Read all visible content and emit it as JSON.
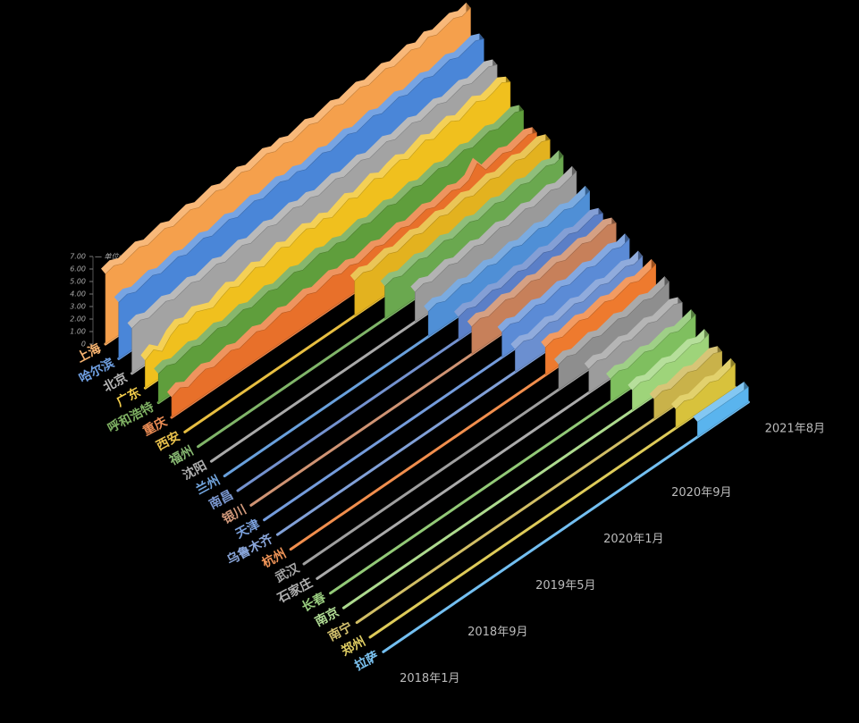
{
  "chart_data": {
    "type": "ribbon3d",
    "y_label": "— 单位: 元/斤",
    "ylim": [
      0,
      7
    ],
    "yticks": [
      0,
      {
        "value": 1,
        "label": "1.00"
      },
      {
        "value": 2,
        "label": "2.00"
      },
      {
        "value": 3,
        "label": "3.00"
      },
      {
        "value": 4,
        "label": "4.00"
      },
      {
        "value": 5,
        "label": "5.00"
      },
      {
        "value": 6,
        "label": "6.00"
      },
      {
        "value": 7,
        "label": "7.00"
      }
    ],
    "categories": [
      "2018年1月",
      null,
      null,
      null,
      null,
      null,
      null,
      null,
      "2018年9月",
      null,
      null,
      null,
      null,
      null,
      null,
      null,
      "2019年5月",
      null,
      null,
      null,
      null,
      null,
      null,
      null,
      "2020年1月",
      null,
      null,
      null,
      null,
      null,
      null,
      null,
      "2020年9月",
      null,
      null,
      null,
      null,
      null,
      null,
      null,
      null,
      null,
      null,
      "2021年8月"
    ],
    "series": [
      {
        "name": "上海",
        "color": "#f5a04c",
        "values": [
          5.6,
          5.8,
          5.5,
          5.7,
          5.9,
          5.6,
          5.8,
          6.0,
          5.7,
          5.9,
          6.1,
          5.8,
          6.0,
          6.2,
          5.9,
          6.1,
          6.3,
          6.0,
          6.2,
          6.4,
          6.1,
          6.3,
          6.0,
          6.2,
          6.4,
          6.1,
          6.3,
          6.5,
          6.2,
          6.4,
          6.6,
          6.3,
          6.5,
          6.7,
          6.4,
          6.6,
          6.8,
          6.5,
          6.9,
          6.6,
          6.8,
          7.0,
          6.7,
          6.9
        ]
      },
      {
        "name": "哈尔滨",
        "color": "#4a86d8",
        "values": [
          4.5,
          4.7,
          4.4,
          4.6,
          4.8,
          4.5,
          4.7,
          4.9,
          4.6,
          4.8,
          5.0,
          4.7,
          4.9,
          5.1,
          4.8,
          5.0,
          5.2,
          4.9,
          5.1,
          5.3,
          5.0,
          5.2,
          4.9,
          5.1,
          5.3,
          5.0,
          5.2,
          5.4,
          5.1,
          5.3,
          5.5,
          5.2,
          5.4,
          5.6,
          5.3,
          5.5,
          5.7,
          5.4,
          5.6,
          5.8,
          5.5,
          5.7,
          5.9,
          5.6
        ]
      },
      {
        "name": "北京",
        "color": "#a3a3a3",
        "values": [
          3.6,
          3.8,
          3.5,
          3.7,
          3.9,
          3.6,
          3.8,
          4.0,
          3.7,
          3.9,
          4.1,
          3.8,
          4.0,
          4.2,
          3.9,
          4.1,
          4.3,
          4.0,
          4.2,
          4.4,
          4.1,
          4.3,
          4.0,
          4.2,
          4.4,
          4.1,
          4.3,
          4.5,
          4.2,
          4.4,
          4.6,
          4.3,
          4.5,
          4.7,
          4.4,
          4.6,
          4.8,
          4.5,
          4.7,
          4.9,
          4.6,
          4.8,
          5.0,
          4.7
        ]
      },
      {
        "name": "广东",
        "color": "#f0c01e",
        "values": [
          2.2,
          2.6,
          2.0,
          2.8,
          3.2,
          2.9,
          3.3,
          3.0,
          2.7,
          3.1,
          3.4,
          3.0,
          3.3,
          3.6,
          3.2,
          3.5,
          3.8,
          3.4,
          3.7,
          3.9,
          3.5,
          3.8,
          3.4,
          3.7,
          4.0,
          3.6,
          3.9,
          4.2,
          3.8,
          4.1,
          4.3,
          3.9,
          4.2,
          4.5,
          4.1,
          4.4,
          4.6,
          4.2,
          4.5,
          4.8,
          4.4,
          4.6,
          4.9,
          4.5
        ]
      },
      {
        "name": "呼和浩特",
        "color": "#5f9e3c",
        "values": [
          2.3,
          2.5,
          2.2,
          2.4,
          2.6,
          2.3,
          2.5,
          2.7,
          2.4,
          2.6,
          2.8,
          2.5,
          2.7,
          2.9,
          2.6,
          2.8,
          3.0,
          2.7,
          2.9,
          3.1,
          2.8,
          3.0,
          2.7,
          2.9,
          3.1,
          2.8,
          3.0,
          3.2,
          2.9,
          3.1,
          3.3,
          3.0,
          3.2,
          3.4,
          3.1,
          3.3,
          3.5,
          3.2,
          3.4,
          3.6,
          3.3,
          3.5,
          3.7,
          3.4
        ]
      },
      {
        "name": "重庆",
        "color": "#e8702a",
        "values": [
          1.6,
          1.9,
          1.5,
          1.8,
          2.0,
          1.7,
          1.9,
          2.1,
          1.8,
          2.0,
          2.2,
          1.9,
          2.1,
          2.3,
          2.0,
          2.2,
          2.4,
          2.1,
          2.3,
          2.5,
          2.2,
          2.4,
          2.1,
          2.3,
          2.5,
          2.2,
          2.4,
          2.6,
          2.3,
          2.5,
          2.7,
          2.4,
          2.6,
          2.8,
          2.5,
          2.7,
          3.6,
          2.6,
          2.8,
          3.0,
          2.7,
          2.9,
          3.1,
          2.8
        ]
      },
      {
        "name": "西安",
        "color": "#e3b21f",
        "values": [
          null,
          null,
          null,
          null,
          null,
          null,
          null,
          null,
          null,
          null,
          null,
          null,
          null,
          null,
          null,
          null,
          null,
          null,
          null,
          null,
          2.8,
          3.0,
          2.7,
          2.9,
          3.1,
          2.8,
          3.0,
          3.2,
          2.9,
          3.1,
          3.3,
          3.0,
          3.2,
          3.4,
          3.1,
          3.3,
          3.5,
          3.2,
          3.4,
          3.6,
          3.3,
          3.5,
          3.7,
          3.4
        ]
      },
      {
        "name": "福州",
        "color": "#6aa84f",
        "values": [
          null,
          null,
          null,
          null,
          null,
          null,
          null,
          null,
          null,
          null,
          null,
          null,
          null,
          null,
          null,
          null,
          null,
          null,
          null,
          null,
          null,
          null,
          2.6,
          2.8,
          2.5,
          2.7,
          2.9,
          2.6,
          2.8,
          3.0,
          2.7,
          2.9,
          3.1,
          2.8,
          3.0,
          3.2,
          2.9,
          3.1,
          3.3,
          3.0,
          3.2,
          3.4,
          3.1,
          3.3
        ]
      },
      {
        "name": "沈阳",
        "color": "#9a9a9a",
        "values": [
          null,
          null,
          null,
          null,
          null,
          null,
          null,
          null,
          null,
          null,
          null,
          null,
          null,
          null,
          null,
          null,
          null,
          null,
          null,
          null,
          null,
          null,
          null,
          null,
          2.4,
          2.6,
          2.3,
          2.5,
          2.7,
          2.4,
          2.6,
          2.8,
          2.5,
          2.7,
          2.9,
          2.6,
          2.8,
          3.0,
          2.7,
          2.9,
          3.1,
          2.8,
          3.0,
          3.2
        ]
      },
      {
        "name": "兰州",
        "color": "#4f8fd6",
        "values": [
          null,
          null,
          null,
          null,
          null,
          null,
          null,
          null,
          null,
          null,
          null,
          null,
          null,
          null,
          null,
          null,
          null,
          null,
          null,
          null,
          null,
          null,
          null,
          null,
          2.0,
          2.2,
          1.9,
          2.1,
          2.3,
          2.0,
          2.2,
          2.4,
          2.1,
          2.3,
          2.5,
          2.2,
          2.4,
          2.6,
          2.3,
          2.5,
          2.7,
          2.4,
          2.6,
          2.8
        ]
      },
      {
        "name": "南昌",
        "color": "#5b7fc7",
        "values": [
          null,
          null,
          null,
          null,
          null,
          null,
          null,
          null,
          null,
          null,
          null,
          null,
          null,
          null,
          null,
          null,
          null,
          null,
          null,
          null,
          null,
          null,
          null,
          null,
          null,
          null,
          1.8,
          2.0,
          1.7,
          1.9,
          2.1,
          1.8,
          2.0,
          2.2,
          1.9,
          2.1,
          2.3,
          2.0,
          2.2,
          2.4,
          2.1,
          2.3,
          2.5,
          2.2
        ]
      },
      {
        "name": "银川",
        "color": "#c7805a",
        "values": [
          null,
          null,
          null,
          null,
          null,
          null,
          null,
          null,
          null,
          null,
          null,
          null,
          null,
          null,
          null,
          null,
          null,
          null,
          null,
          null,
          null,
          null,
          null,
          null,
          null,
          null,
          2.2,
          2.4,
          2.1,
          2.3,
          2.5,
          2.2,
          2.4,
          2.6,
          2.3,
          2.5,
          2.7,
          2.4,
          2.6,
          2.8,
          2.5,
          2.7,
          2.9,
          2.6
        ]
      },
      {
        "name": "天津",
        "color": "#5b8bd6",
        "values": [
          null,
          null,
          null,
          null,
          null,
          null,
          null,
          null,
          null,
          null,
          null,
          null,
          null,
          null,
          null,
          null,
          null,
          null,
          null,
          null,
          null,
          null,
          null,
          null,
          null,
          null,
          null,
          null,
          2.0,
          2.2,
          1.9,
          2.1,
          2.3,
          2.0,
          2.2,
          2.4,
          2.1,
          2.3,
          2.5,
          2.2,
          2.4,
          2.6,
          2.3,
          2.5
        ]
      },
      {
        "name": "乌鲁木齐",
        "color": "#6b8fd0",
        "values": [
          null,
          null,
          null,
          null,
          null,
          null,
          null,
          null,
          null,
          null,
          null,
          null,
          null,
          null,
          null,
          null,
          null,
          null,
          null,
          null,
          null,
          null,
          null,
          null,
          null,
          null,
          null,
          null,
          1.8,
          2.0,
          1.7,
          1.9,
          2.1,
          1.8,
          2.0,
          2.2,
          1.9,
          2.1,
          2.3,
          2.0,
          2.2,
          2.4,
          2.1,
          2.3
        ]
      },
      {
        "name": "杭州",
        "color": "#ee7a2e",
        "values": [
          null,
          null,
          null,
          null,
          null,
          null,
          null,
          null,
          null,
          null,
          null,
          null,
          null,
          null,
          null,
          null,
          null,
          null,
          null,
          null,
          null,
          null,
          null,
          null,
          null,
          null,
          null,
          null,
          null,
          null,
          2.2,
          2.4,
          2.1,
          2.3,
          2.5,
          2.2,
          2.4,
          2.6,
          2.3,
          2.5,
          2.7,
          2.4,
          2.6,
          2.8
        ]
      },
      {
        "name": "武汉",
        "color": "#8e8e8e",
        "values": [
          null,
          null,
          null,
          null,
          null,
          null,
          null,
          null,
          null,
          null,
          null,
          null,
          null,
          null,
          null,
          null,
          null,
          null,
          null,
          null,
          null,
          null,
          null,
          null,
          null,
          null,
          null,
          null,
          null,
          null,
          2.0,
          2.2,
          1.9,
          2.1,
          2.3,
          2.0,
          2.2,
          2.4,
          2.1,
          2.3,
          2.5,
          2.2,
          2.4,
          2.6
        ]
      },
      {
        "name": "石家庄",
        "color": "#9c9c9c",
        "values": [
          null,
          null,
          null,
          null,
          null,
          null,
          null,
          null,
          null,
          null,
          null,
          null,
          null,
          null,
          null,
          null,
          null,
          null,
          null,
          null,
          null,
          null,
          null,
          null,
          null,
          null,
          null,
          null,
          null,
          null,
          null,
          null,
          1.9,
          2.1,
          1.8,
          2.0,
          2.2,
          1.9,
          2.1,
          2.3,
          2.0,
          2.2,
          2.4,
          2.1
        ]
      },
      {
        "name": "长春",
        "color": "#7fbf5f",
        "values": [
          null,
          null,
          null,
          null,
          null,
          null,
          null,
          null,
          null,
          null,
          null,
          null,
          null,
          null,
          null,
          null,
          null,
          null,
          null,
          null,
          null,
          null,
          null,
          null,
          null,
          null,
          null,
          null,
          null,
          null,
          null,
          null,
          null,
          1.8,
          2.0,
          1.7,
          1.9,
          2.1,
          1.8,
          2.0,
          2.2,
          1.9,
          2.1,
          2.3
        ]
      },
      {
        "name": "南京",
        "color": "#9ed47a",
        "values": [
          null,
          null,
          null,
          null,
          null,
          null,
          null,
          null,
          null,
          null,
          null,
          null,
          null,
          null,
          null,
          null,
          null,
          null,
          null,
          null,
          null,
          null,
          null,
          null,
          null,
          null,
          null,
          null,
          null,
          null,
          null,
          null,
          null,
          null,
          1.6,
          1.8,
          1.5,
          1.7,
          1.9,
          1.6,
          1.8,
          2.0,
          1.7,
          1.9
        ]
      },
      {
        "name": "南宁",
        "color": "#c9b24a",
        "values": [
          null,
          null,
          null,
          null,
          null,
          null,
          null,
          null,
          null,
          null,
          null,
          null,
          null,
          null,
          null,
          null,
          null,
          null,
          null,
          null,
          null,
          null,
          null,
          null,
          null,
          null,
          null,
          null,
          null,
          null,
          null,
          null,
          null,
          null,
          null,
          1.6,
          1.8,
          1.5,
          1.7,
          1.9,
          1.6,
          1.8,
          2.0,
          1.7
        ]
      },
      {
        "name": "郑州",
        "color": "#d8c23c",
        "values": [
          null,
          null,
          null,
          null,
          null,
          null,
          null,
          null,
          null,
          null,
          null,
          null,
          null,
          null,
          null,
          null,
          null,
          null,
          null,
          null,
          null,
          null,
          null,
          null,
          null,
          null,
          null,
          null,
          null,
          null,
          null,
          null,
          null,
          null,
          null,
          null,
          1.5,
          1.7,
          1.4,
          1.6,
          1.8,
          1.5,
          1.7,
          1.9
        ]
      },
      {
        "name": "拉萨",
        "color": "#5ab4ee",
        "values": [
          null,
          null,
          null,
          null,
          null,
          null,
          null,
          null,
          null,
          null,
          null,
          null,
          null,
          null,
          null,
          null,
          null,
          null,
          null,
          null,
          null,
          null,
          null,
          null,
          null,
          null,
          null,
          null,
          null,
          null,
          null,
          null,
          null,
          null,
          null,
          null,
          null,
          1.2,
          1.2,
          1.2,
          1.2,
          1.2,
          1.2,
          1.2
        ]
      }
    ]
  }
}
